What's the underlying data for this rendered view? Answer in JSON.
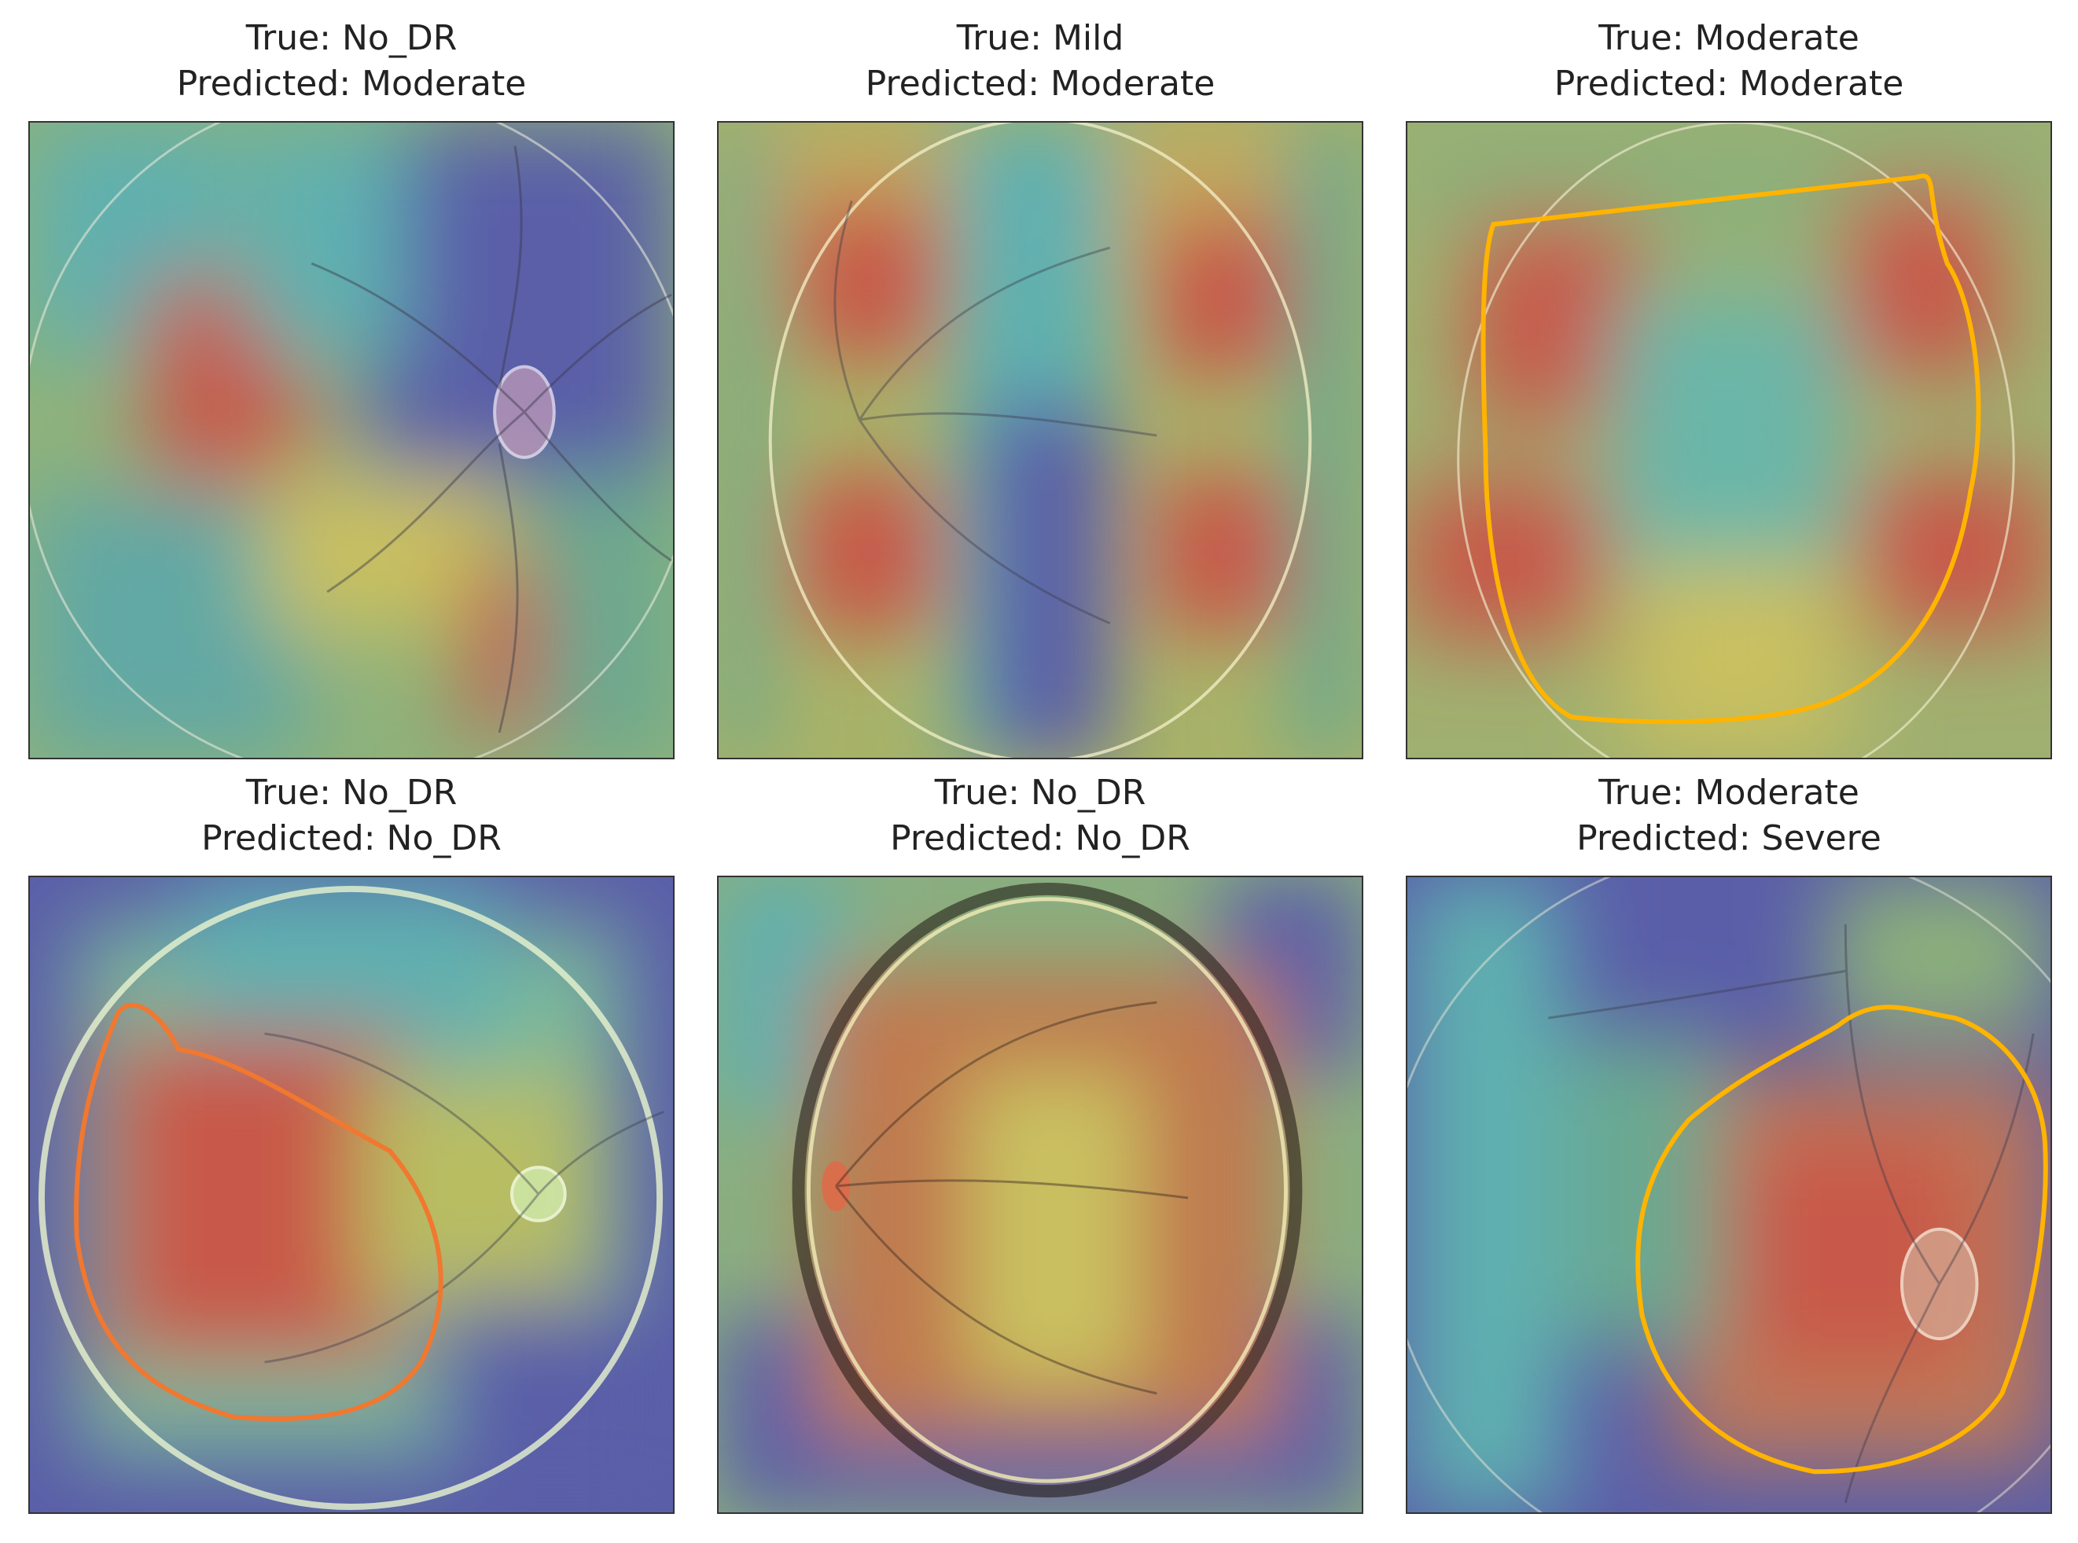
{
  "panels": [
    {
      "true_label": "True: No_DR",
      "pred_label": "Predicted: Moderate",
      "contour": "none"
    },
    {
      "true_label": "True: Mild",
      "pred_label": "Predicted: Moderate",
      "contour": "none"
    },
    {
      "true_label": "True: Moderate",
      "pred_label": "Predicted: Moderate",
      "contour": "yellow"
    },
    {
      "true_label": "True: No_DR",
      "pred_label": "Predicted: No_DR",
      "contour": "orange"
    },
    {
      "true_label": "True: No_DR",
      "pred_label": "Predicted: No_DR",
      "contour": "none"
    },
    {
      "true_label": "True: Moderate",
      "pred_label": "Predicted: Severe",
      "contour": "yellow"
    }
  ],
  "colors": {
    "heat_red": "#c8584a",
    "heat_yellow": "#c9c060",
    "heat_cyan": "#5fb0b0",
    "heat_blue": "#5a5ea8",
    "contour_yellow": "#ffb400",
    "contour_orange": "#f07830"
  }
}
